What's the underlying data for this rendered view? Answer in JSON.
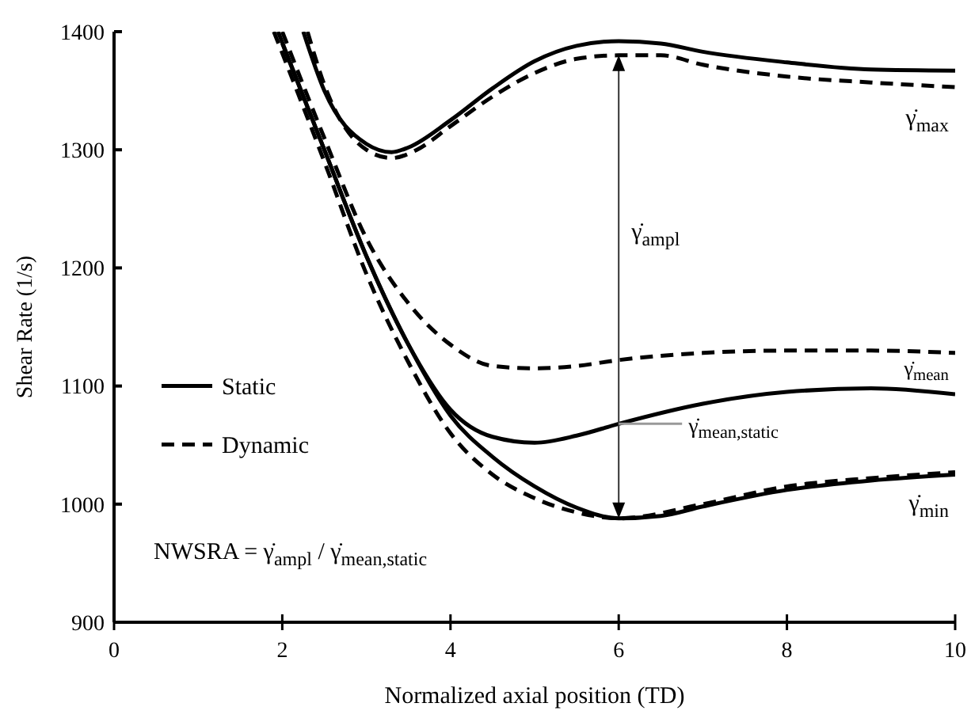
{
  "chart_data": {
    "type": "line",
    "xlabel": "Normalized axial position (TD)",
    "ylabel": "Shear Rate (1/s)",
    "xlim": [
      0,
      10
    ],
    "ylim": [
      900,
      1400
    ],
    "xticks": [
      0,
      2,
      4,
      6,
      8,
      10
    ],
    "yticks": [
      900,
      1000,
      1100,
      1200,
      1300,
      1400
    ],
    "legend": "left",
    "series": [
      {
        "name": "Static",
        "color": "#000000",
        "line_style": "solid",
        "x": [
          2.25,
          2.5,
          3,
          3.3,
          3.5,
          4,
          4.5,
          5,
          5.5,
          6,
          6.5,
          7,
          8,
          9,
          10
        ],
        "values": [
          1400,
          1350,
          1305,
          1298,
          1302,
          1325,
          1352,
          1375,
          1388,
          1392,
          1390,
          1383,
          1374,
          1368,
          1367
        ]
      },
      {
        "name": "Dynamic",
        "color": "#000000",
        "line_style": "dashed",
        "x": [
          2.3,
          2.5,
          3,
          3.3,
          3.6,
          4,
          4.5,
          5,
          5.5,
          6,
          6.5,
          7,
          8,
          9,
          10
        ],
        "values": [
          1400,
          1355,
          1300,
          1293,
          1300,
          1320,
          1345,
          1365,
          1377,
          1380,
          1380,
          1372,
          1362,
          1357,
          1353
        ]
      },
      {
        "color": "#000000",
        "line_style": "solid",
        "x": [
          2,
          2.5,
          3,
          3.5,
          4,
          4.5,
          5,
          5.5,
          6,
          7,
          8,
          9,
          10
        ],
        "values": [
          1390,
          1300,
          1210,
          1135,
          1080,
          1057,
          1052,
          1058,
          1068,
          1085,
          1095,
          1098,
          1093
        ]
      },
      {
        "color": "#000000",
        "line_style": "dashed",
        "x": [
          2,
          2.5,
          3,
          3.5,
          4,
          4.5,
          5,
          5.5,
          6,
          7,
          8,
          9,
          10
        ],
        "values": [
          1400,
          1310,
          1225,
          1170,
          1135,
          1117,
          1115,
          1117,
          1122,
          1128,
          1130,
          1130,
          1128
        ]
      },
      {
        "color": "#000000",
        "line_style": "solid",
        "x": [
          1.95,
          2.5,
          3,
          3.5,
          4,
          4.5,
          5,
          5.5,
          6,
          6.5,
          7,
          8,
          9,
          10
        ],
        "values": [
          1400,
          1300,
          1210,
          1135,
          1075,
          1040,
          1015,
          997,
          988,
          990,
          998,
          1012,
          1020,
          1025
        ]
      },
      {
        "color": "#000000",
        "line_style": "dashed",
        "x": [
          1.9,
          2.5,
          3,
          3.5,
          4,
          4.5,
          5,
          5.5,
          6,
          7,
          8,
          9,
          10
        ],
        "values": [
          1400,
          1290,
          1195,
          1120,
          1060,
          1025,
          1005,
          993,
          988,
          1000,
          1015,
          1022,
          1027
        ]
      }
    ],
    "annotations": [
      "γ̇$_{max}$",
      "γ̇$_{ampl}$",
      "γ̇$_{mean}$",
      "γ̇$_{mean,static}$",
      "γ̇$_{min}$",
      "NWSRA = γ̇$_{ampl}$ / γ̇$_{mean,static}$"
    ]
  }
}
